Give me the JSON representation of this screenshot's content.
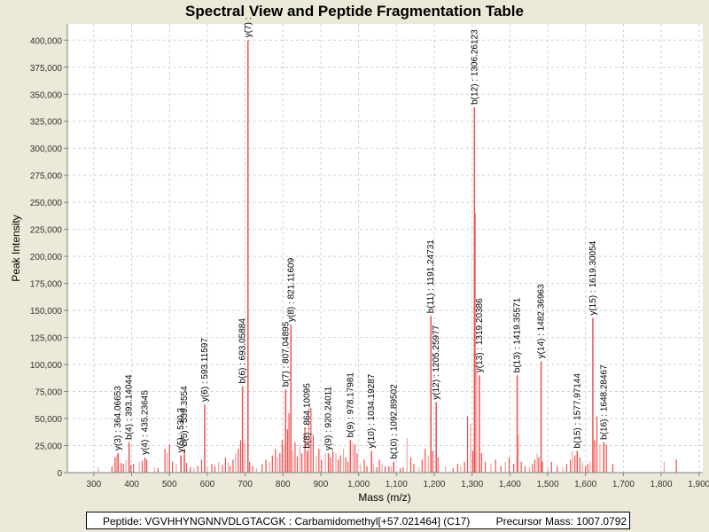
{
  "chart_data": {
    "type": "bar",
    "subtype": "mass-spectrum-sticks",
    "title": "Spectral View and Peptide Fragmentation Table",
    "xlabel": "Mass (m/z)",
    "ylabel": "Peak Intensity",
    "xlim": [
      230,
      1910
    ],
    "ylim": [
      0,
      415000
    ],
    "xticks": [
      300,
      400,
      500,
      600,
      700,
      800,
      900,
      1000,
      1100,
      1200,
      1300,
      1400,
      1500,
      1600,
      1700,
      1800,
      1900
    ],
    "xtick_labels": [
      "300",
      "400",
      "500",
      "600",
      "700",
      "800",
      "900",
      "1,000",
      "1,100",
      "1,200",
      "1,300",
      "1,400",
      "1,500",
      "1,600",
      "1,700",
      "1,800",
      "1,900"
    ],
    "yticks": [
      0,
      25000,
      50000,
      75000,
      100000,
      125000,
      150000,
      175000,
      200000,
      225000,
      250000,
      275000,
      300000,
      325000,
      350000,
      375000,
      400000
    ],
    "ytick_labels": [
      "0",
      "25,000",
      "50,000",
      "75,000",
      "100,000",
      "125,000",
      "150,000",
      "175,000",
      "200,000",
      "225,000",
      "250,000",
      "275,000",
      "300,000",
      "325,000",
      "350,000",
      "375,000",
      "400,000"
    ],
    "grid": true,
    "bar_color": "#f05050",
    "annotated_peaks": [
      {
        "label": "y(3) : 364.06653",
        "mz": 364.07,
        "intensity": 18000
      },
      {
        "label": "b(4) : 393.14044",
        "mz": 393.14,
        "intensity": 28000
      },
      {
        "label": "y(4) : 435.23645",
        "mz": 435.24,
        "intensity": 14000
      },
      {
        "label": "y(5) : 530.3",
        "mz": 530.3,
        "intensity": 16000
      },
      {
        "label": "b(5) : 539.3554",
        "mz": 539.36,
        "intensity": 22000
      },
      {
        "label": "y(6) : 593.11597",
        "mz": 593.12,
        "intensity": 63000
      },
      {
        "label": "b(6) : 693.05884",
        "mz": 693.06,
        "intensity": 80000
      },
      {
        "label": "y(7) : ",
        "mz": 707.5,
        "intensity": 400000
      },
      {
        "label": "b(7) : 807.04895",
        "mz": 807.05,
        "intensity": 77000
      },
      {
        "label": "y(8) : 821.11609",
        "mz": 821.12,
        "intensity": 137000
      },
      {
        "label": "b(8) : 864.10095",
        "mz": 864.1,
        "intensity": 20000
      },
      {
        "label": "y(9) : 920.24011",
        "mz": 920.24,
        "intensity": 18000
      },
      {
        "label": "b(9) : 978.17981",
        "mz": 978.18,
        "intensity": 30000
      },
      {
        "label": "y(10) : 1034.19287",
        "mz": 1034.19,
        "intensity": 20000
      },
      {
        "label": "b(10) : 1092.89502",
        "mz": 1092.9,
        "intensity": 10000
      },
      {
        "label": "b(11) : 1191.24731",
        "mz": 1191.25,
        "intensity": 145000
      },
      {
        "label": "y(12) : 1205.25977",
        "mz": 1205.26,
        "intensity": 65000
      },
      {
        "label": "b(12) : 1306.26123",
        "mz": 1306.26,
        "intensity": 338000
      },
      {
        "label": "y(13) : 1319.20386",
        "mz": 1319.2,
        "intensity": 90000
      },
      {
        "label": "b(13) : 1419.35571",
        "mz": 1419.36,
        "intensity": 90000
      },
      {
        "label": "y(14) : 1482.36963",
        "mz": 1482.37,
        "intensity": 103000
      },
      {
        "label": "b(15) : 1577.97144",
        "mz": 1577.97,
        "intensity": 20000
      },
      {
        "label": "y(15) : 1619.30054",
        "mz": 1619.3,
        "intensity": 143000
      },
      {
        "label": "b(16) : 1648.28467",
        "mz": 1648.28,
        "intensity": 28000
      }
    ],
    "other_peaks": [
      [
        312,
        5000
      ],
      [
        348,
        6000
      ],
      [
        356,
        14000
      ],
      [
        360,
        16000
      ],
      [
        372,
        9000
      ],
      [
        378,
        8000
      ],
      [
        385,
        12000
      ],
      [
        398,
        7000
      ],
      [
        405,
        8000
      ],
      [
        420,
        10000
      ],
      [
        428,
        11000
      ],
      [
        440,
        12000
      ],
      [
        460,
        5000
      ],
      [
        470,
        4000
      ],
      [
        488,
        22000
      ],
      [
        494,
        18000
      ],
      [
        500,
        26000
      ],
      [
        508,
        10000
      ],
      [
        518,
        8000
      ],
      [
        545,
        9000
      ],
      [
        555,
        5000
      ],
      [
        565,
        4000
      ],
      [
        575,
        6000
      ],
      [
        585,
        12000
      ],
      [
        600,
        5000
      ],
      [
        612,
        8000
      ],
      [
        620,
        6000
      ],
      [
        630,
        10000
      ],
      [
        640,
        7000
      ],
      [
        648,
        14000
      ],
      [
        655,
        9000
      ],
      [
        660,
        6000
      ],
      [
        668,
        12000
      ],
      [
        675,
        18000
      ],
      [
        682,
        22000
      ],
      [
        688,
        30000
      ],
      [
        698,
        28000
      ],
      [
        712,
        10000
      ],
      [
        720,
        6000
      ],
      [
        730,
        4000
      ],
      [
        745,
        8000
      ],
      [
        755,
        12000
      ],
      [
        765,
        10000
      ],
      [
        772,
        16000
      ],
      [
        780,
        22000
      ],
      [
        786,
        14000
      ],
      [
        792,
        18000
      ],
      [
        798,
        30000
      ],
      [
        802,
        25000
      ],
      [
        812,
        40000
      ],
      [
        816,
        55000
      ],
      [
        826,
        20000
      ],
      [
        832,
        28000
      ],
      [
        838,
        15000
      ],
      [
        845,
        25000
      ],
      [
        850,
        18000
      ],
      [
        858,
        42000
      ],
      [
        868,
        58000
      ],
      [
        874,
        60000
      ],
      [
        880,
        35000
      ],
      [
        888,
        15000
      ],
      [
        895,
        22000
      ],
      [
        902,
        12000
      ],
      [
        912,
        18000
      ],
      [
        926,
        14000
      ],
      [
        932,
        20000
      ],
      [
        940,
        18000
      ],
      [
        946,
        12000
      ],
      [
        952,
        16000
      ],
      [
        960,
        22000
      ],
      [
        966,
        14000
      ],
      [
        972,
        10000
      ],
      [
        985,
        28000
      ],
      [
        990,
        26000
      ],
      [
        996,
        18000
      ],
      [
        1005,
        8000
      ],
      [
        1015,
        12000
      ],
      [
        1022,
        6000
      ],
      [
        1040,
        8000
      ],
      [
        1048,
        5000
      ],
      [
        1055,
        12000
      ],
      [
        1062,
        8000
      ],
      [
        1070,
        6000
      ],
      [
        1080,
        6000
      ],
      [
        1086,
        6000
      ],
      [
        1110,
        4000
      ],
      [
        1118,
        5000
      ],
      [
        1128,
        32000
      ],
      [
        1138,
        14000
      ],
      [
        1146,
        8000
      ],
      [
        1160,
        5000
      ],
      [
        1168,
        12000
      ],
      [
        1176,
        22000
      ],
      [
        1184,
        16000
      ],
      [
        1196,
        20000
      ],
      [
        1210,
        14000
      ],
      [
        1230,
        6000
      ],
      [
        1250,
        4000
      ],
      [
        1262,
        8000
      ],
      [
        1270,
        6000
      ],
      [
        1280,
        10000
      ],
      [
        1288,
        52000
      ],
      [
        1296,
        45000
      ],
      [
        1302,
        20000
      ],
      [
        1308,
        240000
      ],
      [
        1312,
        100000
      ],
      [
        1325,
        18000
      ],
      [
        1335,
        10000
      ],
      [
        1350,
        8000
      ],
      [
        1362,
        12000
      ],
      [
        1376,
        6000
      ],
      [
        1388,
        10000
      ],
      [
        1398,
        14000
      ],
      [
        1410,
        8000
      ],
      [
        1422,
        35000
      ],
      [
        1430,
        10000
      ],
      [
        1440,
        6000
      ],
      [
        1452,
        5000
      ],
      [
        1460,
        8000
      ],
      [
        1466,
        12000
      ],
      [
        1472,
        18000
      ],
      [
        1476,
        14000
      ],
      [
        1486,
        10000
      ],
      [
        1500,
        4000
      ],
      [
        1510,
        10000
      ],
      [
        1525,
        6000
      ],
      [
        1540,
        5000
      ],
      [
        1550,
        8000
      ],
      [
        1560,
        12000
      ],
      [
        1565,
        20000
      ],
      [
        1572,
        16000
      ],
      [
        1585,
        14000
      ],
      [
        1592,
        10000
      ],
      [
        1600,
        6000
      ],
      [
        1606,
        8000
      ],
      [
        1612,
        10000
      ],
      [
        1624,
        30000
      ],
      [
        1630,
        52000
      ],
      [
        1638,
        26000
      ],
      [
        1655,
        26000
      ],
      [
        1672,
        8000
      ],
      [
        1808,
        10000
      ],
      [
        1840,
        12000
      ]
    ]
  },
  "info_box": {
    "peptide_text": "Peptide: VGVHHYNGNNVDLGTACGK : Carbamidomethyl[+57.021464] (C17)",
    "precursor_text": "Precursor Mass: 1007.0792"
  }
}
